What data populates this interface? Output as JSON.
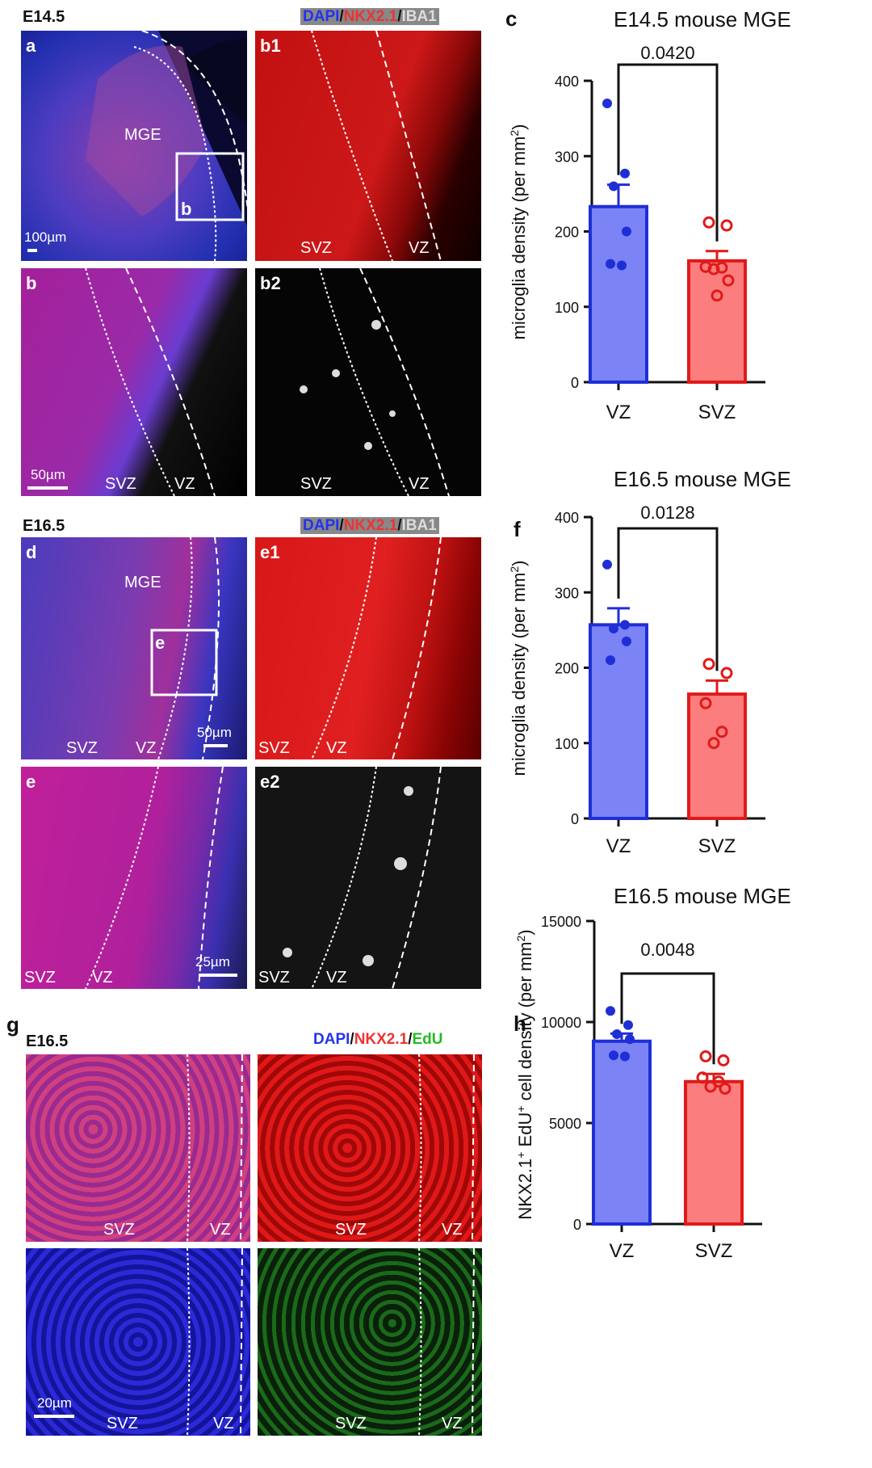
{
  "figure": {
    "row1": {
      "stage": "E14.5",
      "legend": {
        "c1": "DAPI",
        "sep1": "/",
        "c2": "NKX2.1",
        "sep2": "/",
        "c3": "IBA1"
      },
      "panels": {
        "a": "a",
        "b1": "b1",
        "b": "b",
        "b2": "b2"
      },
      "labels": {
        "mge": "MGE",
        "box": "b",
        "svz": "SVZ",
        "vz": "VZ"
      },
      "scalebars": {
        "a": "100µm",
        "b": "50µm"
      }
    },
    "row2": {
      "stage": "E16.5",
      "legend": {
        "c1": "DAPI",
        "sep1": "/",
        "c2": "NKX2.1",
        "sep2": "/",
        "c3": "IBA1"
      },
      "panels": {
        "d": "d",
        "e1": "e1",
        "e": "e",
        "e2": "e2"
      },
      "labels": {
        "mge": "MGE",
        "box": "e",
        "svz": "SVZ",
        "vz": "VZ"
      },
      "scalebars": {
        "d": "50µm",
        "e": "25µm"
      }
    },
    "row3": {
      "panel": "g",
      "stage": "E16.5",
      "legend": {
        "c1": "DAPI",
        "sep1": "/",
        "c2": "NKX2.1",
        "sep2": "/",
        "c3": "EdU"
      },
      "labels": {
        "svz": "SVZ",
        "vz": "VZ"
      },
      "scalebar": "20µm"
    },
    "colors": {
      "vz_fill": "#7b83f5",
      "vz_edge": "#1f2fd6",
      "svz_fill": "#fb7d7d",
      "svz_edge": "#e01a1a",
      "vz_dot": "#1f2fd6",
      "svz_dot": "#e01a1a"
    }
  },
  "chart_data": [
    {
      "panel": "c",
      "type": "bar",
      "title": "E14.5 mouse MGE",
      "ylabel": "microglia density (per mm²)",
      "ylabel_main": "microglia density (per mm",
      "ylabel_sup": "2",
      "ylabel_end": ")",
      "categories": [
        "VZ",
        "SVZ"
      ],
      "values": [
        233,
        161
      ],
      "sem": [
        29,
        13
      ],
      "points": [
        [
          370,
          277,
          260,
          200,
          157,
          155
        ],
        [
          212,
          208,
          153,
          152,
          150,
          135,
          115
        ]
      ],
      "ylim": [
        0,
        400
      ],
      "yticks": [
        0,
        100,
        200,
        300,
        400
      ],
      "ytick_labels": [
        "0",
        "100",
        "200",
        "300",
        "400"
      ],
      "p_value": "0.0420"
    },
    {
      "panel": "f",
      "type": "bar",
      "title": "E16.5 mouse MGE",
      "ylabel": "microglia density (per mm²)",
      "ylabel_main": "microglia density (per mm",
      "ylabel_sup": "2",
      "ylabel_end": ")",
      "categories": [
        "VZ",
        "SVZ"
      ],
      "values": [
        257,
        165
      ],
      "sem": [
        22,
        18
      ],
      "points": [
        [
          337,
          257,
          252,
          235,
          210
        ],
        [
          205,
          193,
          153,
          115,
          100
        ]
      ],
      "ylim": [
        0,
        400
      ],
      "yticks": [
        0,
        100,
        200,
        300,
        400
      ],
      "ytick_labels": [
        "0",
        "100",
        "200",
        "300",
        "400"
      ],
      "p_value": "0.0128"
    },
    {
      "panel": "h",
      "type": "bar",
      "title": "E16.5 mouse MGE",
      "ylabel": "NKX2.1⁺ EdU⁺ cell density (per mm²)",
      "ylabel_main": "NKX2.1",
      "ylabel_sup": "+",
      "ylabel_mid": " EdU",
      "ylabel_sup2": "+",
      "ylabel_mid2": " cell density (per mm",
      "ylabel_sup3": "2",
      "ylabel_end": ")",
      "categories": [
        "VZ",
        "SVZ"
      ],
      "values": [
        9050,
        7050
      ],
      "sem": [
        380,
        380
      ],
      "points": [
        [
          10550,
          9850,
          9400,
          9150,
          8350,
          8300
        ],
        [
          8300,
          8100,
          7250,
          7050,
          6800,
          6700
        ]
      ],
      "ylim": [
        0,
        15000
      ],
      "yticks": [
        0,
        5000,
        10000,
        15000
      ],
      "ytick_labels": [
        "0",
        "5000",
        "10000",
        "15000"
      ],
      "p_value": "0.0048"
    }
  ]
}
